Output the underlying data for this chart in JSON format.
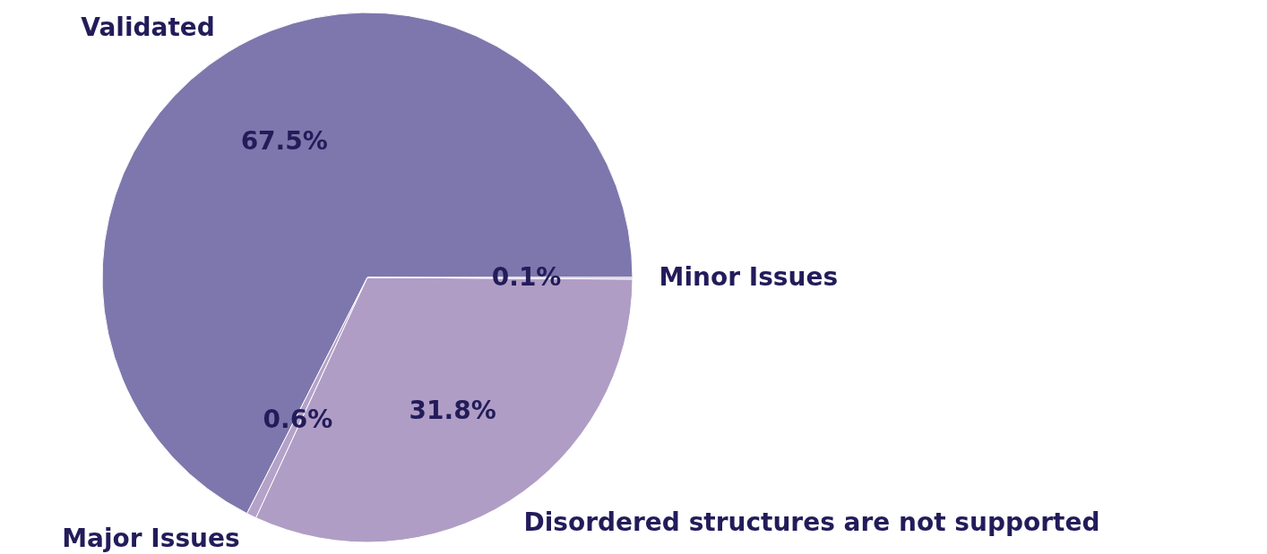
{
  "chart_data": {
    "type": "pie",
    "categories": [
      "Validated",
      "Major Issues",
      "Disordered structures are not supported",
      "Minor Issues"
    ],
    "values": [
      67.5,
      0.6,
      31.8,
      0.1
    ],
    "value_labels": [
      "67.5%",
      "0.6%",
      "31.8%",
      "0.1%"
    ],
    "colors": [
      "#7e77ad",
      "#b4a2c9",
      "#b09dc5",
      "#b09dc5"
    ]
  }
}
